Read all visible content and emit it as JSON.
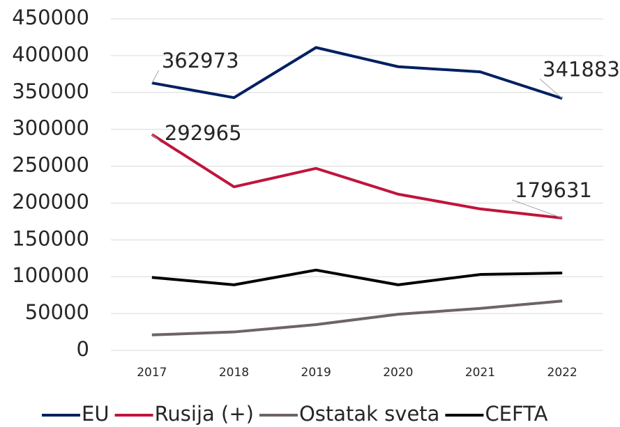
{
  "chart_data": {
    "type": "line",
    "categories": [
      "2017",
      "2018",
      "2019",
      "2020",
      "2021",
      "2022"
    ],
    "series": [
      {
        "name": "EU",
        "color": "#002060",
        "values": [
          362973,
          343000,
          411000,
          385000,
          378000,
          341883
        ],
        "value_labels": [
          "362973",
          null,
          null,
          null,
          null,
          "341883"
        ]
      },
      {
        "name": "Rusija (+)",
        "color": "#c0143c",
        "values": [
          292965,
          222000,
          247000,
          212000,
          192000,
          179631
        ],
        "value_labels": [
          "292965",
          null,
          null,
          null,
          null,
          "179631"
        ]
      },
      {
        "name": "Ostatak sveta",
        "color": "#6e6464",
        "values": [
          21000,
          25000,
          35000,
          49000,
          57000,
          67000
        ]
      },
      {
        "name": "CEFTA",
        "color": "#000000",
        "values": [
          99000,
          89000,
          109000,
          89000,
          103000,
          105000
        ]
      }
    ],
    "ylim": [
      0,
      450000
    ],
    "yticks": [
      0,
      50000,
      100000,
      150000,
      200000,
      250000,
      300000,
      350000,
      400000,
      450000
    ],
    "grid": true,
    "legend": "bottom"
  }
}
